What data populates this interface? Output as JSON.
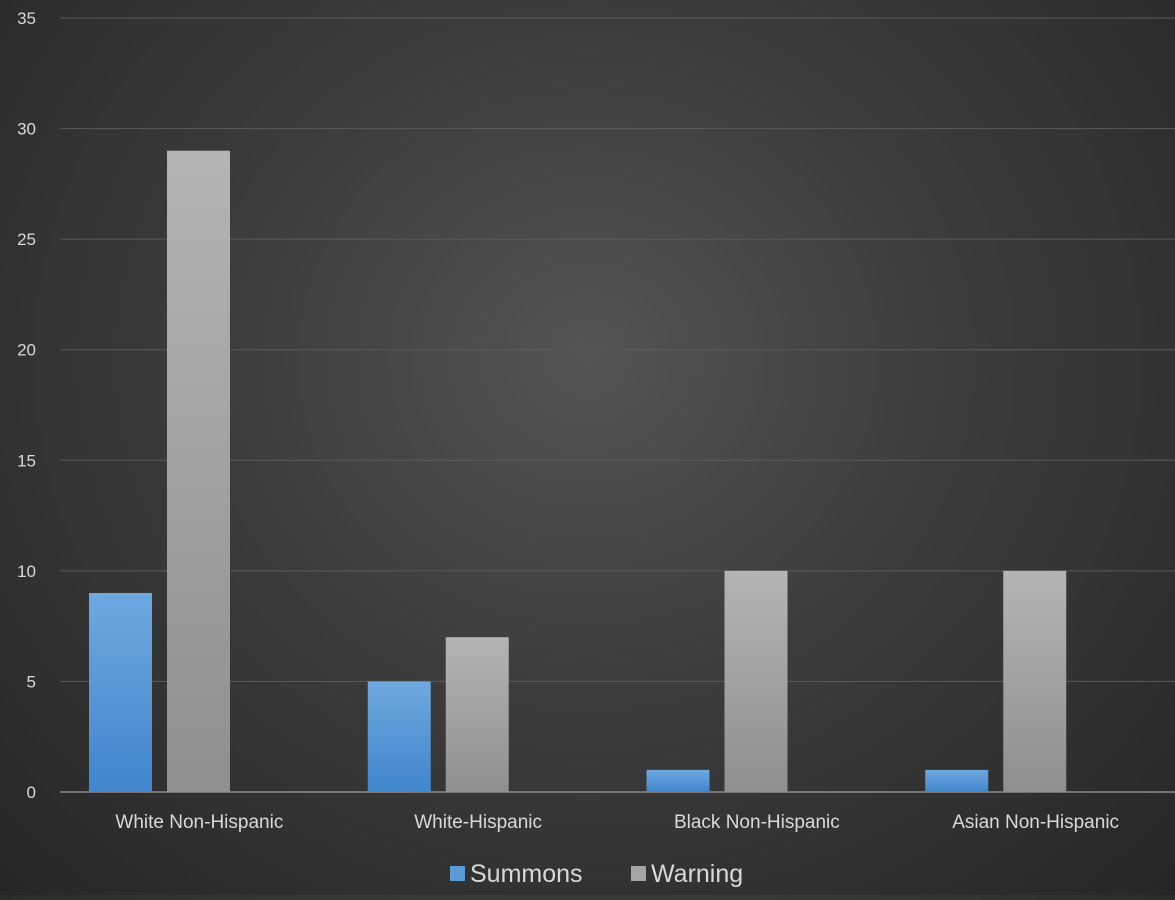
{
  "chart_data": {
    "type": "bar",
    "title": "",
    "xlabel": "",
    "ylabel": "",
    "categories": [
      "White Non-Hispanic",
      "White-Hispanic",
      "Black Non-Hispanic",
      "Asian Non-Hispanic"
    ],
    "series": [
      {
        "name": "Summons",
        "values": [
          9,
          5,
          1,
          1
        ],
        "color": "#5b9bd5"
      },
      {
        "name": "Warning",
        "values": [
          29,
          7,
          10,
          10
        ],
        "color": "#a5a5a5"
      }
    ],
    "ylim": [
      0,
      35
    ],
    "yticks": [
      0,
      5,
      10,
      15,
      20,
      25,
      30,
      35
    ],
    "grid": true,
    "legend": "bottom"
  }
}
